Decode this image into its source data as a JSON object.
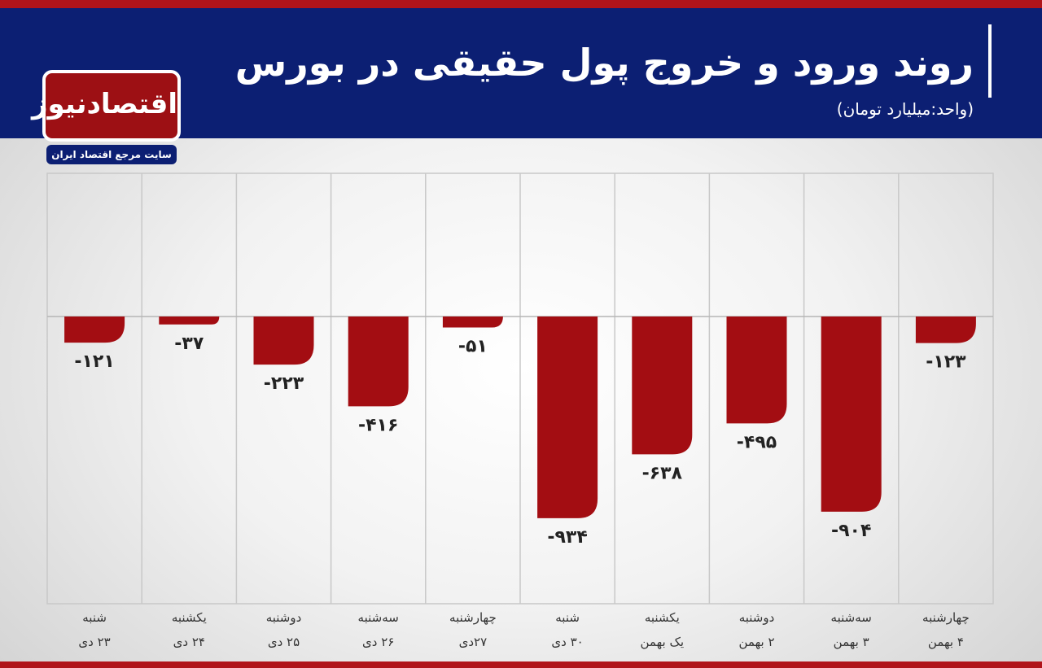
{
  "logo": {
    "name": "اقتصادنیوز",
    "tagline": "سایت مرجع اقتصاد ایران"
  },
  "chart_data": {
    "type": "bar",
    "title": "روند ورود و خروج پول حقیقی در بورس",
    "subtitle": "(واحد:میلیارد تومان)",
    "categories": [
      "شنبه\n۲۳ دی",
      "یکشنبه\n۲۴ دی",
      "دوشنبه\n۲۵ دی",
      "سه‌شنبه\n۲۶ دی",
      "چهارشنبه\n۲۷دی",
      "شنبه\n۳۰ دی",
      "یکشنبه\nیک بهمن",
      "دوشنبه\n۲ بهمن",
      "سه‌شنبه\n۳ بهمن",
      "چهارشنبه\n۴ بهمن"
    ],
    "values": [
      -121,
      -37,
      -223,
      -416,
      -51,
      -934,
      -638,
      -495,
      -904,
      -123
    ],
    "value_labels": [
      "-۱۲۱",
      "-۳۷",
      "-۲۲۳",
      "-۴۱۶",
      "-۵۱",
      "-۹۳۴",
      "-۶۳۸",
      "-۴۹۵",
      "-۹۰۴",
      "-۱۲۳"
    ],
    "color": "#a30d12",
    "ylim": [
      -1330,
      663
    ]
  }
}
